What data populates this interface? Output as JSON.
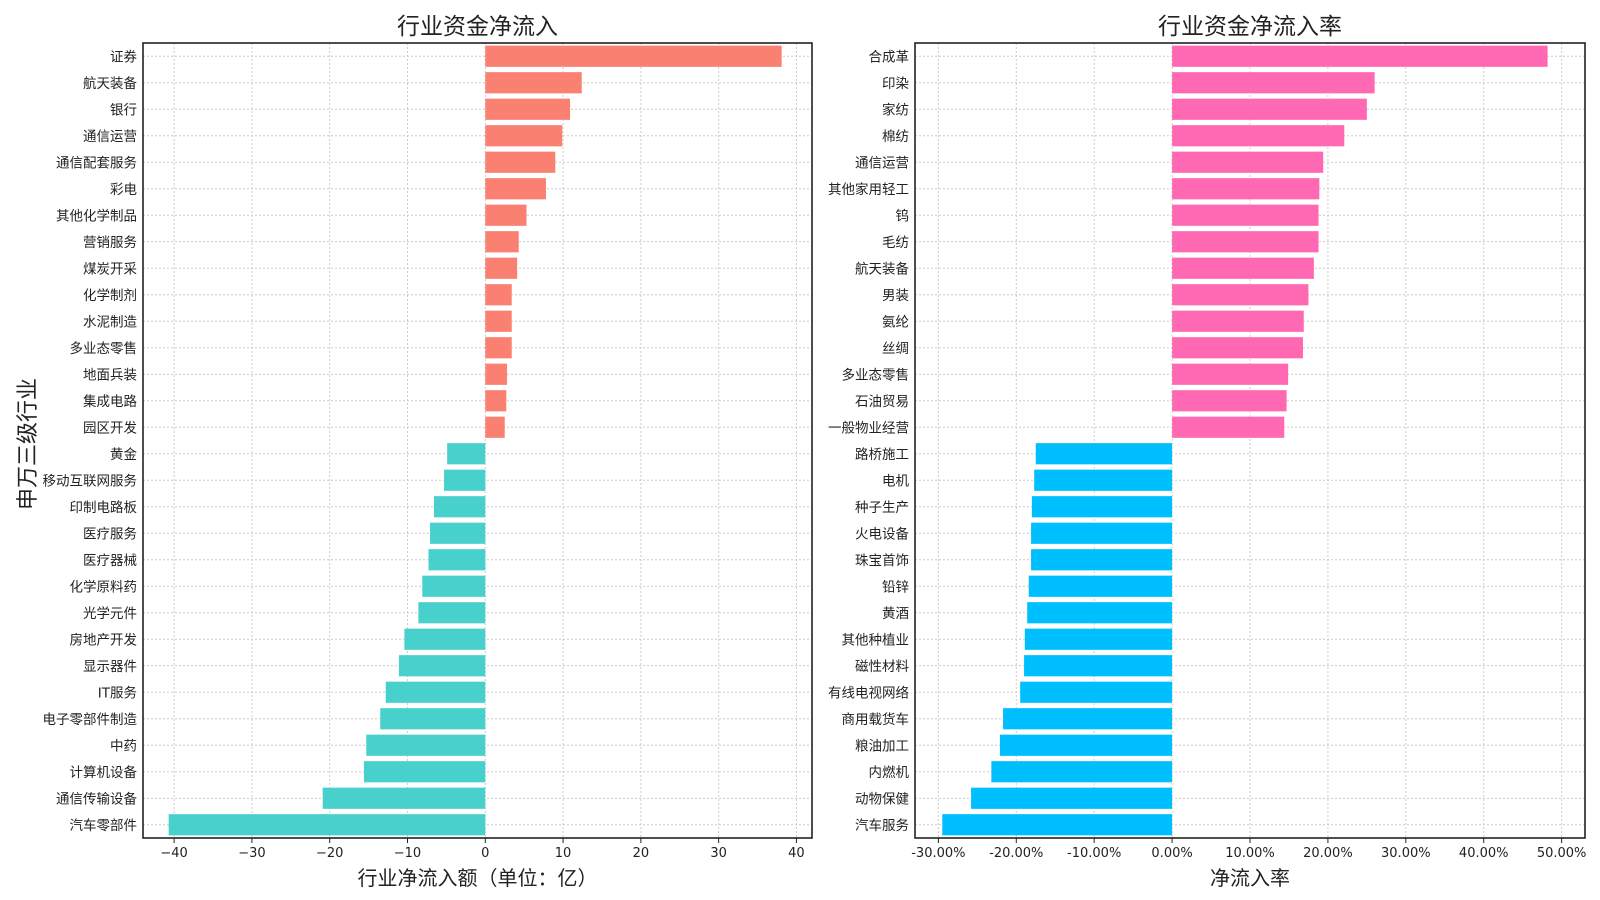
{
  "figure": {
    "shared_ylabel": "申万三级行业"
  },
  "chart_data": [
    {
      "type": "bar",
      "orientation": "horizontal",
      "title": "行业资金净流入",
      "xlabel": "行业净流入额（单位：亿）",
      "ylabel": "申万三级行业",
      "xlim": [
        -44,
        42
      ],
      "xticks": [
        -40,
        -30,
        -20,
        -10,
        0,
        10,
        20,
        30,
        40
      ],
      "xtick_labels": [
        "−40",
        "−30",
        "−20",
        "−10",
        "0",
        "10",
        "20",
        "30",
        "40"
      ],
      "grid": true,
      "positive_color": "#FA8072",
      "negative_color": "#48D1CC",
      "categories": [
        "证券",
        "航天装备",
        "银行",
        "通信运营",
        "通信配套服务",
        "彩电",
        "其他化学制品",
        "营销服务",
        "煤炭开采",
        "化学制剂",
        "水泥制造",
        "多业态零售",
        "地面兵装",
        "集成电路",
        "园区开发",
        "黄金",
        "移动互联网服务",
        "印制电路板",
        "医疗服务",
        "医疗器械",
        "化学原料药",
        "光学元件",
        "房地产开发",
        "显示器件",
        "IT服务",
        "电子零部件制造",
        "中药",
        "计算机设备",
        "通信传输设备",
        "汽车零部件"
      ],
      "values": [
        38.1,
        12.4,
        10.9,
        9.9,
        9.0,
        7.8,
        5.3,
        4.3,
        4.1,
        3.4,
        3.4,
        3.4,
        2.8,
        2.7,
        2.5,
        -4.9,
        -5.3,
        -6.6,
        -7.1,
        -7.3,
        -8.1,
        -8.6,
        -10.4,
        -11.1,
        -12.8,
        -13.5,
        -15.3,
        -15.6,
        -20.9,
        -40.7
      ]
    },
    {
      "type": "bar",
      "orientation": "horizontal",
      "title": "行业资金净流入率",
      "xlabel": "净流入率",
      "xlim": [
        -0.33,
        0.53
      ],
      "xticks": [
        -0.3,
        -0.2,
        -0.1,
        0.0,
        0.1,
        0.2,
        0.3,
        0.4,
        0.5
      ],
      "xtick_labels": [
        "-30.00%",
        "-20.00%",
        "-10.00%",
        "0.00%",
        "10.00%",
        "20.00%",
        "30.00%",
        "40.00%",
        "50.00%"
      ],
      "grid": true,
      "positive_color": "#FF69B4",
      "negative_color": "#00BFFF",
      "categories": [
        "合成革",
        "印染",
        "家纺",
        "棉纺",
        "通信运营",
        "其他家用轻工",
        "钨",
        "毛纺",
        "航天装备",
        "男装",
        "氨纶",
        "丝绸",
        "多业态零售",
        "石油贸易",
        "一般物业经营",
        "路桥施工",
        "电机",
        "种子生产",
        "火电设备",
        "珠宝首饰",
        "铅锌",
        "黄酒",
        "其他种植业",
        "磁性材料",
        "有线电视网络",
        "商用载货车",
        "粮油加工",
        "内燃机",
        "动物保健",
        "汽车服务"
      ],
      "values": [
        0.482,
        0.26,
        0.25,
        0.221,
        0.194,
        0.189,
        0.188,
        0.188,
        0.182,
        0.175,
        0.169,
        0.168,
        0.149,
        0.147,
        0.144,
        -0.175,
        -0.177,
        -0.18,
        -0.181,
        -0.181,
        -0.184,
        -0.186,
        -0.189,
        -0.19,
        -0.195,
        -0.217,
        -0.221,
        -0.232,
        -0.258,
        -0.295
      ]
    }
  ]
}
